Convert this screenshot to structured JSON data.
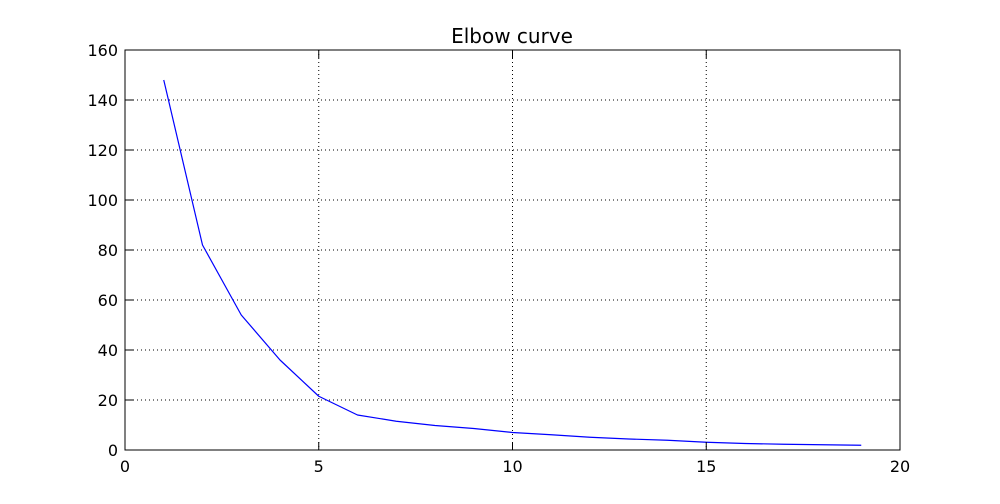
{
  "chart_data": {
    "type": "line",
    "title": "Elbow curve",
    "xlabel": "",
    "ylabel": "",
    "xlim": [
      0,
      20
    ],
    "ylim": [
      0,
      160
    ],
    "x_ticks": [
      0,
      5,
      10,
      15,
      20
    ],
    "y_ticks": [
      0,
      20,
      40,
      60,
      80,
      100,
      120,
      140,
      160
    ],
    "grid": true,
    "series": [
      {
        "color": "#0000ff",
        "x": [
          1,
          2,
          3,
          4,
          5,
          6,
          7,
          8,
          9,
          10,
          11,
          12,
          13,
          14,
          15,
          16,
          17,
          18,
          19
        ],
        "y": [
          148,
          82,
          54,
          36,
          21.5,
          14,
          11.5,
          9.8,
          8.6,
          7,
          6.1,
          5.1,
          4.4,
          3.9,
          3.1,
          2.6,
          2.3,
          2.1,
          1.9
        ]
      }
    ]
  }
}
